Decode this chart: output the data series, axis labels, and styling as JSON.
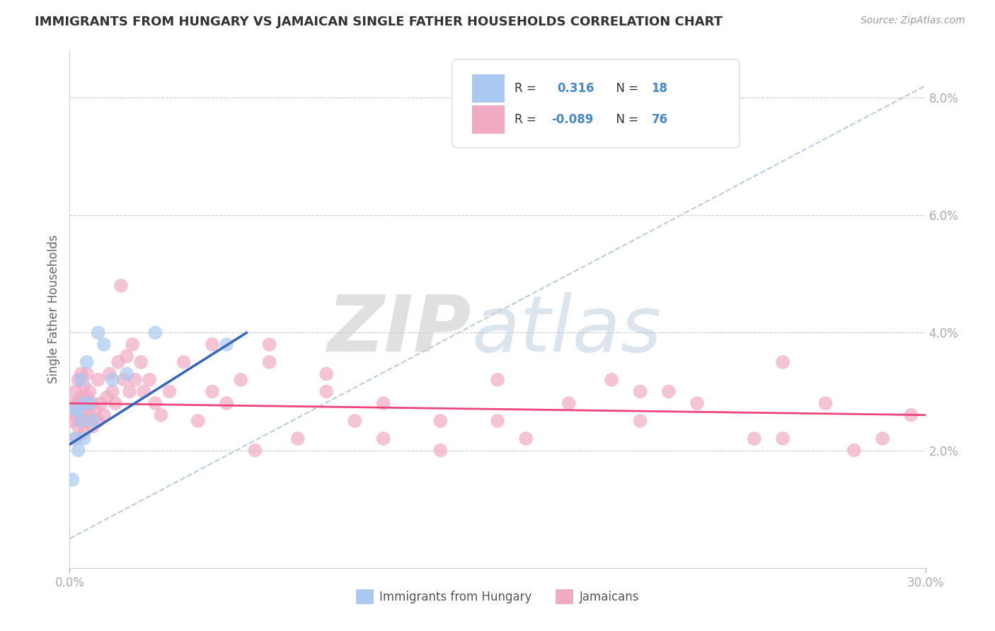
{
  "title": "IMMIGRANTS FROM HUNGARY VS JAMAICAN SINGLE FATHER HOUSEHOLDS CORRELATION CHART",
  "source": "Source: ZipAtlas.com",
  "ylabel": "Single Father Households",
  "xmin": 0.0,
  "xmax": 0.3,
  "ymin": 0.0,
  "ymax": 0.088,
  "yticks": [
    0.02,
    0.04,
    0.06,
    0.08
  ],
  "ytick_labels": [
    "2.0%",
    "4.0%",
    "6.0%",
    "8.0%"
  ],
  "blue_color": "#aac8f0",
  "pink_color": "#f0aac4",
  "blue_line_color": "#3366bb",
  "pink_line_color": "#ee4477",
  "dash_line_color": "#bbccdd",
  "blue_dots_x": [
    0.001,
    0.002,
    0.002,
    0.003,
    0.003,
    0.004,
    0.004,
    0.005,
    0.005,
    0.006,
    0.007,
    0.008,
    0.01,
    0.012,
    0.015,
    0.02,
    0.03,
    0.055
  ],
  "blue_dots_y": [
    0.015,
    0.022,
    0.027,
    0.02,
    0.027,
    0.025,
    0.032,
    0.022,
    0.028,
    0.035,
    0.028,
    0.025,
    0.04,
    0.038,
    0.032,
    0.033,
    0.04,
    0.038
  ],
  "pink_dots_x": [
    0.001,
    0.001,
    0.002,
    0.002,
    0.002,
    0.003,
    0.003,
    0.003,
    0.004,
    0.004,
    0.004,
    0.005,
    0.005,
    0.005,
    0.006,
    0.006,
    0.006,
    0.007,
    0.007,
    0.008,
    0.008,
    0.009,
    0.01,
    0.01,
    0.011,
    0.012,
    0.013,
    0.014,
    0.015,
    0.016,
    0.017,
    0.018,
    0.019,
    0.02,
    0.021,
    0.022,
    0.023,
    0.025,
    0.026,
    0.028,
    0.03,
    0.032,
    0.035,
    0.04,
    0.045,
    0.05,
    0.055,
    0.06,
    0.065,
    0.07,
    0.08,
    0.09,
    0.1,
    0.11,
    0.13,
    0.15,
    0.16,
    0.175,
    0.19,
    0.2,
    0.21,
    0.22,
    0.24,
    0.25,
    0.265,
    0.275,
    0.285,
    0.295,
    0.05,
    0.07,
    0.09,
    0.11,
    0.13,
    0.15,
    0.2,
    0.25
  ],
  "pink_dots_y": [
    0.025,
    0.028,
    0.022,
    0.026,
    0.03,
    0.024,
    0.028,
    0.032,
    0.025,
    0.029,
    0.033,
    0.023,
    0.027,
    0.031,
    0.025,
    0.029,
    0.033,
    0.026,
    0.03,
    0.024,
    0.028,
    0.027,
    0.025,
    0.032,
    0.028,
    0.026,
    0.029,
    0.033,
    0.03,
    0.028,
    0.035,
    0.048,
    0.032,
    0.036,
    0.03,
    0.038,
    0.032,
    0.035,
    0.03,
    0.032,
    0.028,
    0.026,
    0.03,
    0.035,
    0.025,
    0.03,
    0.028,
    0.032,
    0.02,
    0.038,
    0.022,
    0.03,
    0.025,
    0.028,
    0.02,
    0.025,
    0.022,
    0.028,
    0.032,
    0.025,
    0.03,
    0.028,
    0.022,
    0.035,
    0.028,
    0.02,
    0.022,
    0.026,
    0.038,
    0.035,
    0.033,
    0.022,
    0.025,
    0.032,
    0.03,
    0.022
  ],
  "blue_line_x0": 0.0,
  "blue_line_x1": 0.062,
  "blue_line_y0": 0.021,
  "blue_line_y1": 0.04,
  "pink_line_x0": 0.0,
  "pink_line_x1": 0.3,
  "pink_line_y0": 0.028,
  "pink_line_y1": 0.026,
  "dash_line_x0": 0.0,
  "dash_line_x1": 0.3,
  "dash_line_y0": 0.005,
  "dash_line_y1": 0.082
}
